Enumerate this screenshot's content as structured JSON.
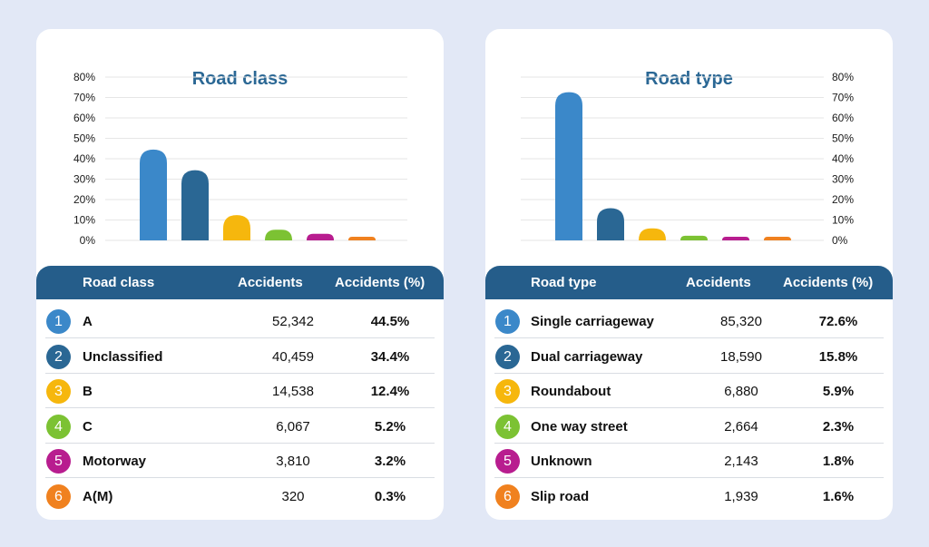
{
  "chart_data": [
    {
      "type": "bar",
      "title": "Road class",
      "axis_side": "left",
      "ylim": [
        0,
        80
      ],
      "yticks": [
        "80%",
        "70%",
        "60%",
        "50%",
        "40%",
        "30%",
        "20%",
        "10%",
        "0%"
      ],
      "categories": [
        "A",
        "Unclassified",
        "B",
        "C",
        "Motorway",
        "A(M)"
      ],
      "values": [
        44.5,
        34.4,
        12.4,
        5.2,
        3.2,
        0.3
      ],
      "colors": [
        "#3b88c9",
        "#2a6794",
        "#f6b70d",
        "#7cc233",
        "#b81d8f",
        "#f0811f"
      ],
      "grid": true,
      "table": {
        "headers": [
          "Road class",
          "Accidents",
          "Accidents (%)"
        ],
        "rows": [
          {
            "rank": "1",
            "name": "A",
            "accidents": "52,342",
            "percent": "44.5%"
          },
          {
            "rank": "2",
            "name": "Unclassified",
            "accidents": "40,459",
            "percent": "34.4%"
          },
          {
            "rank": "3",
            "name": "B",
            "accidents": "14,538",
            "percent": "12.4%"
          },
          {
            "rank": "4",
            "name": "C",
            "accidents": "6,067",
            "percent": "5.2%"
          },
          {
            "rank": "5",
            "name": "Motorway",
            "accidents": "3,810",
            "percent": "3.2%"
          },
          {
            "rank": "6",
            "name": "A(M)",
            "accidents": "320",
            "percent": "0.3%"
          }
        ]
      }
    },
    {
      "type": "bar",
      "title": "Road type",
      "axis_side": "right",
      "ylim": [
        0,
        80
      ],
      "yticks": [
        "80%",
        "70%",
        "60%",
        "50%",
        "40%",
        "30%",
        "20%",
        "10%",
        "0%"
      ],
      "categories": [
        "Single carriageway",
        "Dual carriageway",
        "Roundabout",
        "One way street",
        "Unknown",
        "Slip road"
      ],
      "values": [
        72.6,
        15.8,
        5.9,
        2.3,
        1.8,
        1.6
      ],
      "colors": [
        "#3b88c9",
        "#2a6794",
        "#f6b70d",
        "#7cc233",
        "#b81d8f",
        "#f0811f"
      ],
      "grid": true,
      "table": {
        "headers": [
          "Road type",
          "Accidents",
          "Accidents (%)"
        ],
        "rows": [
          {
            "rank": "1",
            "name": "Single carriageway",
            "accidents": "85,320",
            "percent": "72.6%"
          },
          {
            "rank": "2",
            "name": "Dual carriageway",
            "accidents": "18,590",
            "percent": "15.8%"
          },
          {
            "rank": "3",
            "name": "Roundabout",
            "accidents": "6,880",
            "percent": "5.9%"
          },
          {
            "rank": "4",
            "name": "One way street",
            "accidents": "2,664",
            "percent": "2.3%"
          },
          {
            "rank": "5",
            "name": "Unknown",
            "accidents": "2,143",
            "percent": "1.8%"
          },
          {
            "rank": "6",
            "name": "Slip road",
            "accidents": "1,939",
            "percent": "1.6%"
          }
        ]
      }
    }
  ]
}
